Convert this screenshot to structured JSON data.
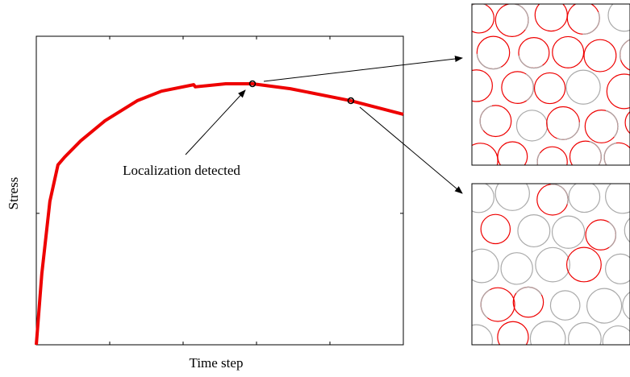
{
  "chart_data": {
    "type": "line",
    "x_label": "Time step",
    "y_label": "Stress",
    "annotation": "Localization detected",
    "x": [
      0,
      0.015,
      0.037,
      0.059,
      0.077,
      0.121,
      0.187,
      0.275,
      0.341,
      0.429,
      0.433,
      0.516,
      0.589,
      0.692,
      0.857,
      1.0
    ],
    "series": [
      {
        "color": "#ee0000",
        "values": [
          0,
          0.23,
          0.465,
          0.583,
          0.608,
          0.661,
          0.726,
          0.791,
          0.822,
          0.843,
          0.836,
          0.846,
          0.846,
          0.83,
          0.791,
          0.747
        ]
      }
    ],
    "highlighted_points": {
      "x": [
        0.589,
        0.857
      ],
      "values": [
        0.846,
        0.791
      ]
    },
    "xlim": [
      0,
      1
    ],
    "ylim": [
      0,
      1
    ],
    "xticks": [
      0.2,
      0.4,
      0.6,
      0.8
    ],
    "yticks": [
      0.426
    ]
  }
}
